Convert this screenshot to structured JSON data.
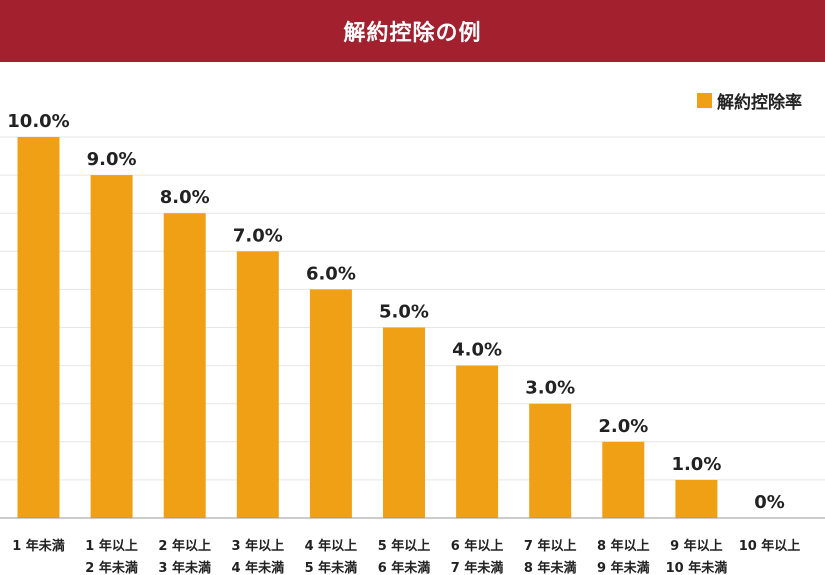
{
  "header": {
    "title": "解約控除の例",
    "bg_color": "#a3202f"
  },
  "legend": {
    "label": "解約控除率",
    "color": "#f0a015"
  },
  "chart_data": {
    "type": "bar",
    "title": "解約控除の例",
    "xlabel": "",
    "ylabel": "",
    "ylim": [
      0,
      10
    ],
    "grid": true,
    "legend_position": "top-right",
    "categories": [
      [
        "1 年未満"
      ],
      [
        "1 年以上",
        "2 年未満"
      ],
      [
        "2 年以上",
        "3 年未満"
      ],
      [
        "3 年以上",
        "4 年未満"
      ],
      [
        "4 年以上",
        "5 年未満"
      ],
      [
        "5 年以上",
        "6 年未満"
      ],
      [
        "6 年以上",
        "7 年未満"
      ],
      [
        "7 年以上",
        "8 年未満"
      ],
      [
        "8 年以上",
        "9 年未満"
      ],
      [
        "9 年以上",
        "10 年未満"
      ],
      [
        "10 年以上"
      ]
    ],
    "series": [
      {
        "name": "解約控除率",
        "values": [
          10,
          9,
          8,
          7,
          6,
          5,
          4,
          3,
          2,
          1,
          0
        ],
        "labels": [
          "10.0%",
          "9.0%",
          "8.0%",
          "7.0%",
          "6.0%",
          "5.0%",
          "4.0%",
          "3.0%",
          "2.0%",
          "1.0%",
          "0%"
        ]
      }
    ]
  }
}
